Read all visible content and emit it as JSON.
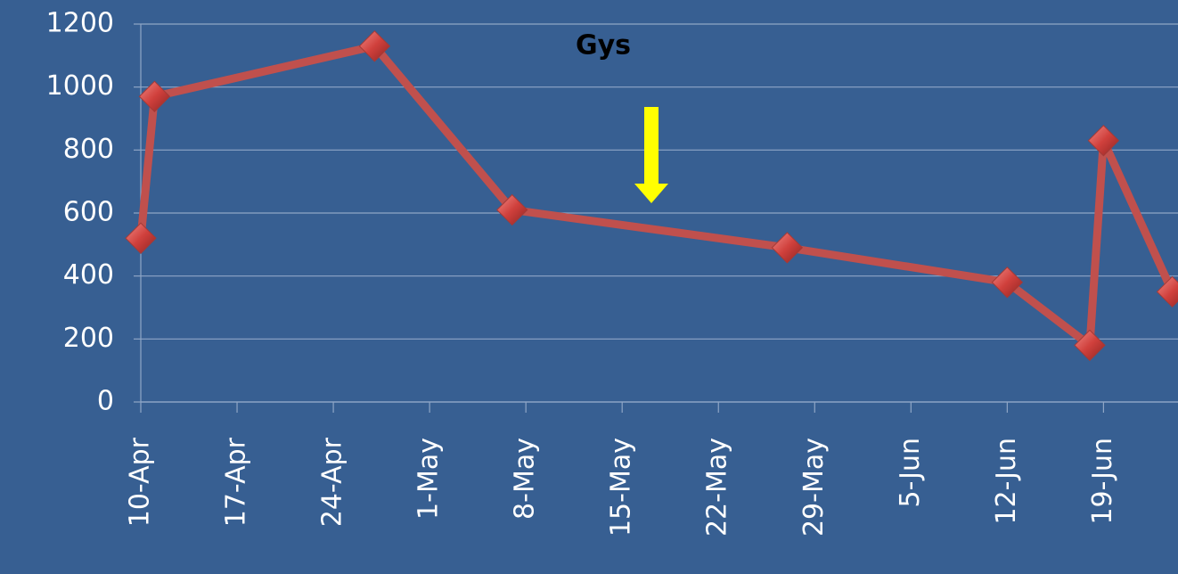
{
  "chart_data": {
    "type": "line",
    "title": "Gys",
    "x": [
      "10-Apr",
      "11-Apr",
      "27-Apr",
      "7-May",
      "27-May",
      "12-Jun",
      "18-Jun",
      "19-Jun",
      "24-Jun"
    ],
    "values": [
      520,
      970,
      1130,
      610,
      490,
      380,
      180,
      830,
      350
    ],
    "color": "#c0504d",
    "xlim": [
      "10-Apr",
      "25-Jun"
    ],
    "xticks": [
      "10-Apr",
      "17-Apr",
      "24-Apr",
      "1-May",
      "8-May",
      "15-May",
      "22-May",
      "29-May",
      "5-Jun",
      "12-Jun",
      "19-Jun"
    ],
    "ylim": [
      0,
      1200
    ],
    "yticks": [
      0,
      200,
      400,
      600,
      800,
      1000,
      1200
    ],
    "grid": true
  }
}
